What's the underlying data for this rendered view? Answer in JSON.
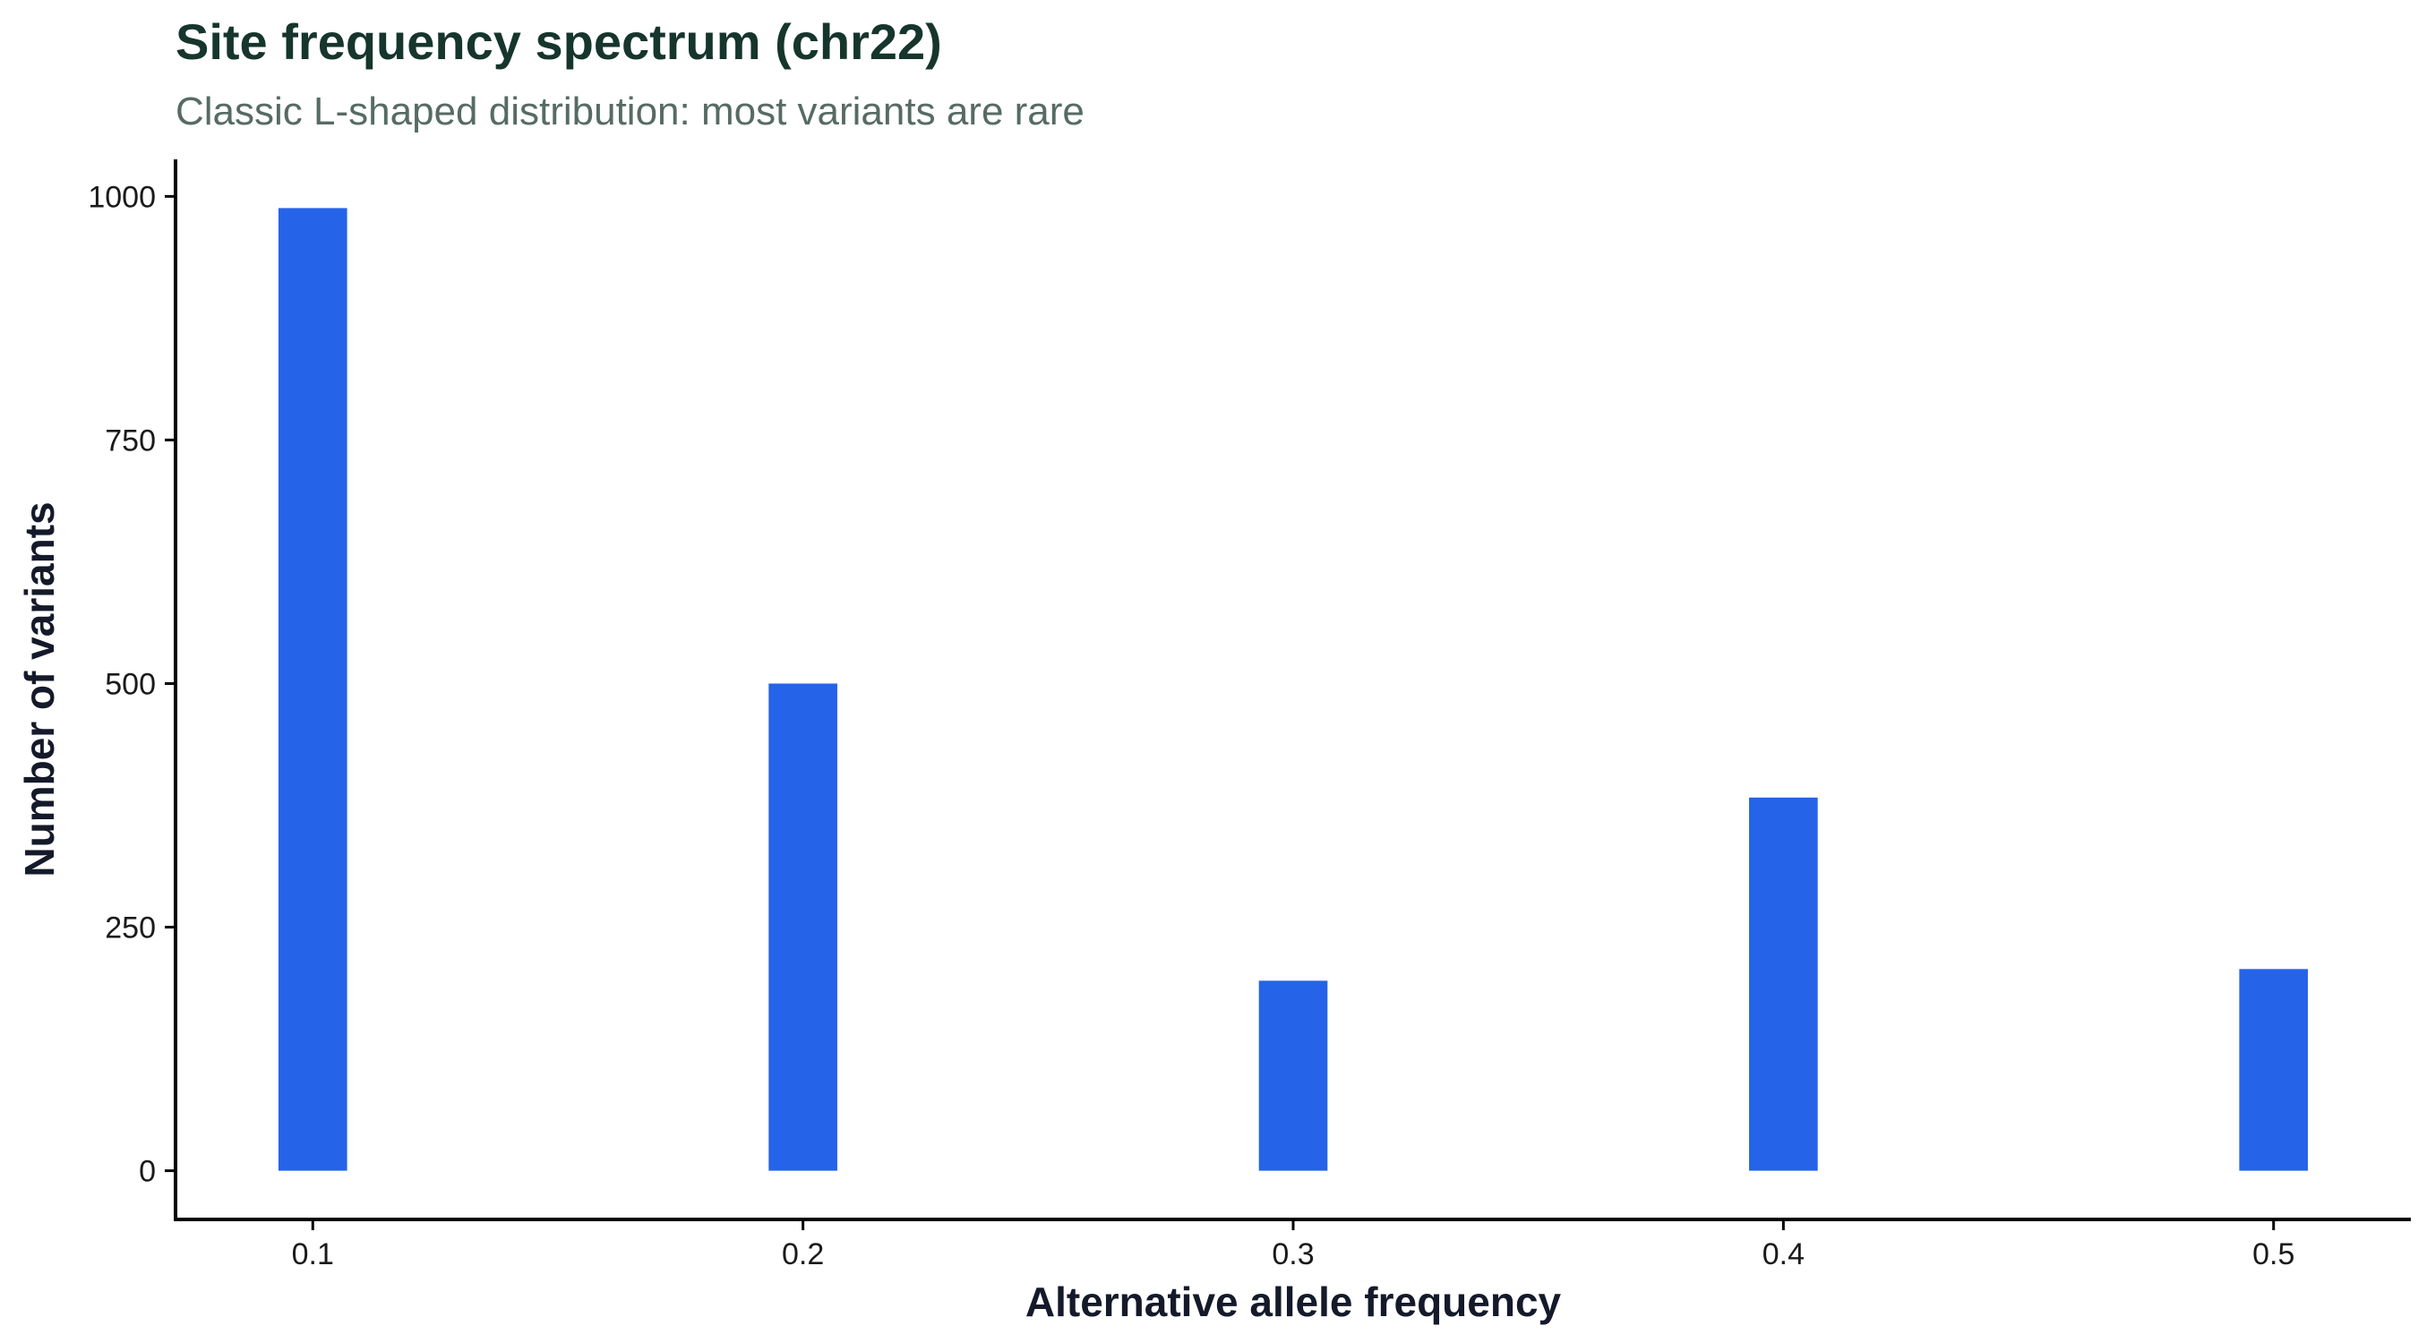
{
  "chart_data": {
    "type": "bar",
    "title": "Site frequency spectrum (chr22)",
    "subtitle": "Classic L-shaped distribution: most variants are rare",
    "xlabel": "Alternative allele frequency",
    "ylabel": "Number of variants",
    "x": [
      0.1,
      0.2,
      0.3,
      0.4,
      0.5
    ],
    "values": [
      988,
      500,
      195,
      383,
      207
    ],
    "bar_width": 0.014,
    "xlim": [
      0.072,
      0.528
    ],
    "ylim": [
      -50,
      1038
    ],
    "x_ticks": [
      0.1,
      0.2,
      0.3,
      0.4,
      0.5
    ],
    "x_tick_labels": [
      "0.1",
      "0.2",
      "0.3",
      "0.4",
      "0.5"
    ],
    "y_ticks": [
      0,
      250,
      500,
      750,
      1000
    ],
    "y_tick_labels": [
      "0",
      "250",
      "500",
      "750",
      "1000"
    ],
    "grid": false,
    "legend": "none",
    "bar_color": "#2563e8"
  }
}
